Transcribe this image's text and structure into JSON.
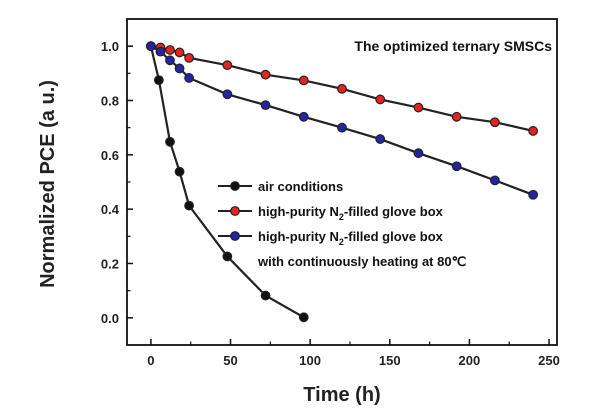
{
  "chart_data": {
    "type": "line",
    "title": "",
    "annotation": "The optimized ternary SMSCs",
    "xlabel": "Time (h)",
    "ylabel": "Normalized PCE (a u.)",
    "xlim": [
      -15,
      255
    ],
    "ylim": [
      -0.1,
      1.1
    ],
    "xticks": [
      0,
      50,
      100,
      150,
      200,
      250
    ],
    "yticks": [
      0.0,
      0.2,
      0.4,
      0.6,
      0.8,
      1.0
    ],
    "xtick_labels": [
      "0",
      "50",
      "100",
      "150",
      "200",
      "250"
    ],
    "ytick_labels": [
      "0.0",
      "0.2",
      "0.4",
      "0.6",
      "0.8",
      "1.0"
    ],
    "grid": false,
    "legend_position": "center",
    "series": [
      {
        "name": "air conditions",
        "color": "#111111",
        "x": [
          0,
          5,
          12,
          18,
          24,
          48,
          72,
          96
        ],
        "y": [
          1.0,
          0.875,
          0.648,
          0.538,
          0.413,
          0.226,
          0.082,
          0.002
        ]
      },
      {
        "name": "high-purity N2-filled glove box",
        "color": "#e8231e",
        "x": [
          0,
          6,
          12,
          18,
          24,
          48,
          72,
          96,
          120,
          144,
          168,
          192,
          216,
          240
        ],
        "y": [
          1.0,
          0.995,
          0.986,
          0.977,
          0.957,
          0.93,
          0.895,
          0.874,
          0.843,
          0.804,
          0.774,
          0.74,
          0.72,
          0.688
        ]
      },
      {
        "name": "high-purity N2-filled glove box with continuously heating at 80℃",
        "color": "#2424a8",
        "x": [
          0,
          6,
          12,
          18,
          24,
          48,
          72,
          96,
          120,
          144,
          168,
          192,
          216,
          240
        ],
        "y": [
          1.0,
          0.98,
          0.948,
          0.918,
          0.883,
          0.823,
          0.783,
          0.74,
          0.7,
          0.658,
          0.606,
          0.558,
          0.506,
          0.453
        ]
      }
    ],
    "legend": [
      {
        "text": "air conditions",
        "color": "#111111"
      },
      {
        "text_pre": "high-purity N",
        "sub": "2",
        "text_post": "-filled glove box",
        "color": "#e8231e"
      },
      {
        "text_pre": "high-purity N",
        "sub": "2",
        "text_post": "-filled glove box",
        "color": "#2424a8"
      },
      {
        "text": "with continuously heating at 80℃",
        "color": ""
      }
    ]
  }
}
